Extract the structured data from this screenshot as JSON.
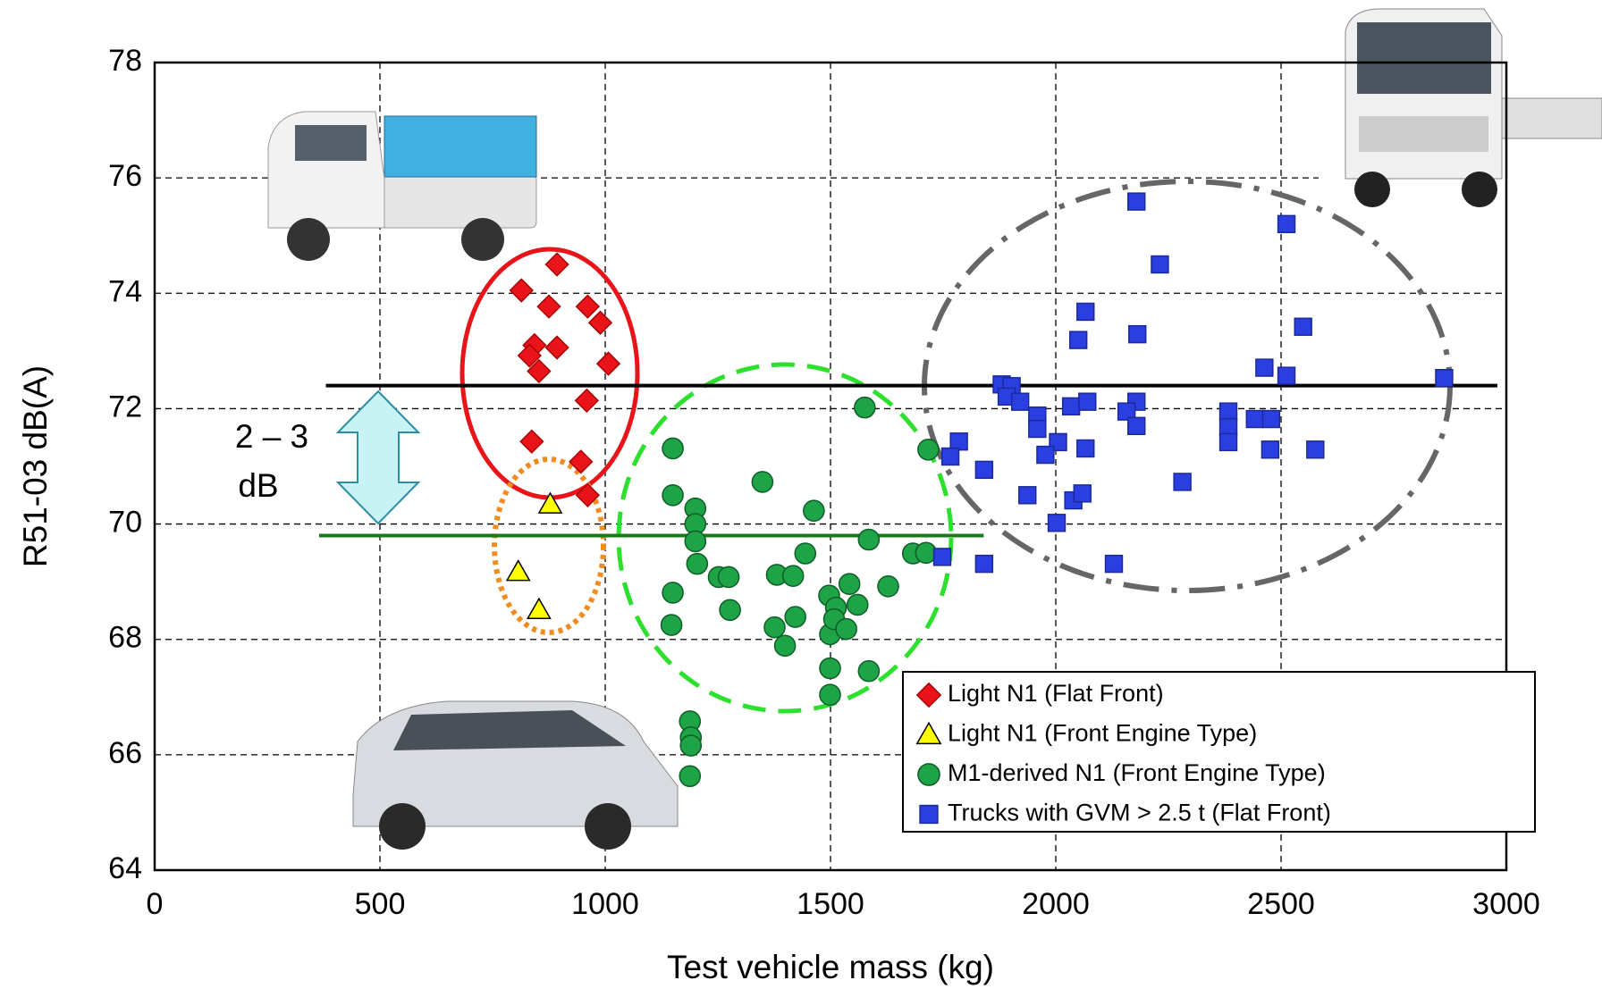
{
  "chart_data": {
    "type": "scatter",
    "x_label": "Test vehicle mass (kg)",
    "y_label": "R51-03 dB(A)",
    "xlim": [
      0,
      3000
    ],
    "xticks": [
      0,
      500,
      1000,
      1500,
      2000,
      2500,
      3000
    ],
    "ylim": [
      64,
      78
    ],
    "yticks": [
      64,
      66,
      68,
      70,
      72,
      74,
      76,
      78
    ],
    "grid": true,
    "legend": "bottom right",
    "annotations": [
      "2 – 3",
      "dB"
    ],
    "reference_lines": [
      {
        "value": 72.4,
        "xrange": [
          380,
          2980
        ],
        "color": "#000000"
      },
      {
        "value": 69.8,
        "xrange": [
          365,
          1840
        ],
        "color": "#1a7a1a"
      }
    ],
    "series": [
      {
        "name": "Light N1 (Flat Front)",
        "color": "#e8141a",
        "marker": "diamond",
        "x": [
          814,
          893,
          875,
          843,
          893,
          832,
          853,
          961,
          989,
          1007,
          959,
          837,
          946,
          961
        ],
        "values": [
          74.05,
          74.5,
          73.77,
          73.1,
          73.06,
          72.92,
          72.65,
          73.77,
          73.49,
          72.78,
          72.14,
          71.43,
          71.08,
          70.5
        ]
      },
      {
        "name": "Light N1 (Front Engine Type)",
        "color": "#ffff00",
        "marker": "triangle",
        "x": [
          878,
          807,
          853
        ],
        "values": [
          70.34,
          69.17,
          68.51
        ]
      },
      {
        "name": "M1-derived N1 (Front Engine Type)",
        "color": "#1fa347",
        "marker": "circle",
        "x": [
          1150,
          1150,
          1200,
          1200,
          1200,
          1204,
          1150,
          1147,
          1252,
          1274,
          1277,
          1349,
          1381,
          1417,
          1444,
          1463,
          1376,
          1399,
          1422,
          1497,
          1499,
          1499,
          1499,
          1512,
          1508,
          1535,
          1542,
          1560,
          1576,
          1585,
          1585,
          1628,
          1683,
          1712,
          1717,
          1188,
          1190,
          1190,
          1188
        ],
        "values": [
          71.31,
          70.5,
          70.27,
          70.0,
          69.7,
          69.31,
          68.81,
          68.25,
          69.08,
          69.08,
          68.51,
          70.73,
          69.12,
          69.1,
          69.49,
          70.23,
          68.21,
          67.89,
          68.39,
          68.76,
          68.09,
          67.5,
          67.04,
          68.55,
          68.35,
          68.18,
          68.96,
          68.6,
          72.02,
          69.73,
          67.45,
          68.92,
          69.49,
          69.5,
          71.29,
          66.58,
          66.3,
          66.16,
          65.63
        ]
      },
      {
        "name": "Trucks with GVM > 2.5 t (Flat Front)",
        "color": "#2b3fe0",
        "marker": "square",
        "x": [
          2179,
          2512,
          2231,
          2066,
          2050,
          2181,
          2549,
          2463,
          2512,
          2862,
          1880,
          1902,
          1891,
          1921,
          1959,
          1959,
          2034,
          2070,
          2179,
          2157,
          2179,
          2383,
          2383,
          2383,
          2442,
          2478,
          2476,
          2576,
          2005,
          1977,
          2066,
          1785,
          1766,
          1841,
          2281,
          1937,
          2039,
          2059,
          2002,
          1748,
          1841,
          2129
        ],
        "values": [
          75.59,
          75.2,
          74.5,
          73.68,
          73.19,
          73.29,
          73.42,
          72.71,
          72.57,
          72.53,
          72.42,
          72.39,
          72.21,
          72.12,
          71.88,
          71.65,
          72.04,
          72.12,
          72.12,
          71.95,
          71.7,
          71.95,
          71.68,
          71.42,
          71.82,
          71.82,
          71.29,
          71.29,
          71.42,
          71.2,
          71.31,
          71.43,
          71.17,
          70.94,
          70.73,
          70.5,
          70.41,
          70.53,
          70.02,
          69.43,
          69.31,
          69.31
        ]
      }
    ]
  }
}
